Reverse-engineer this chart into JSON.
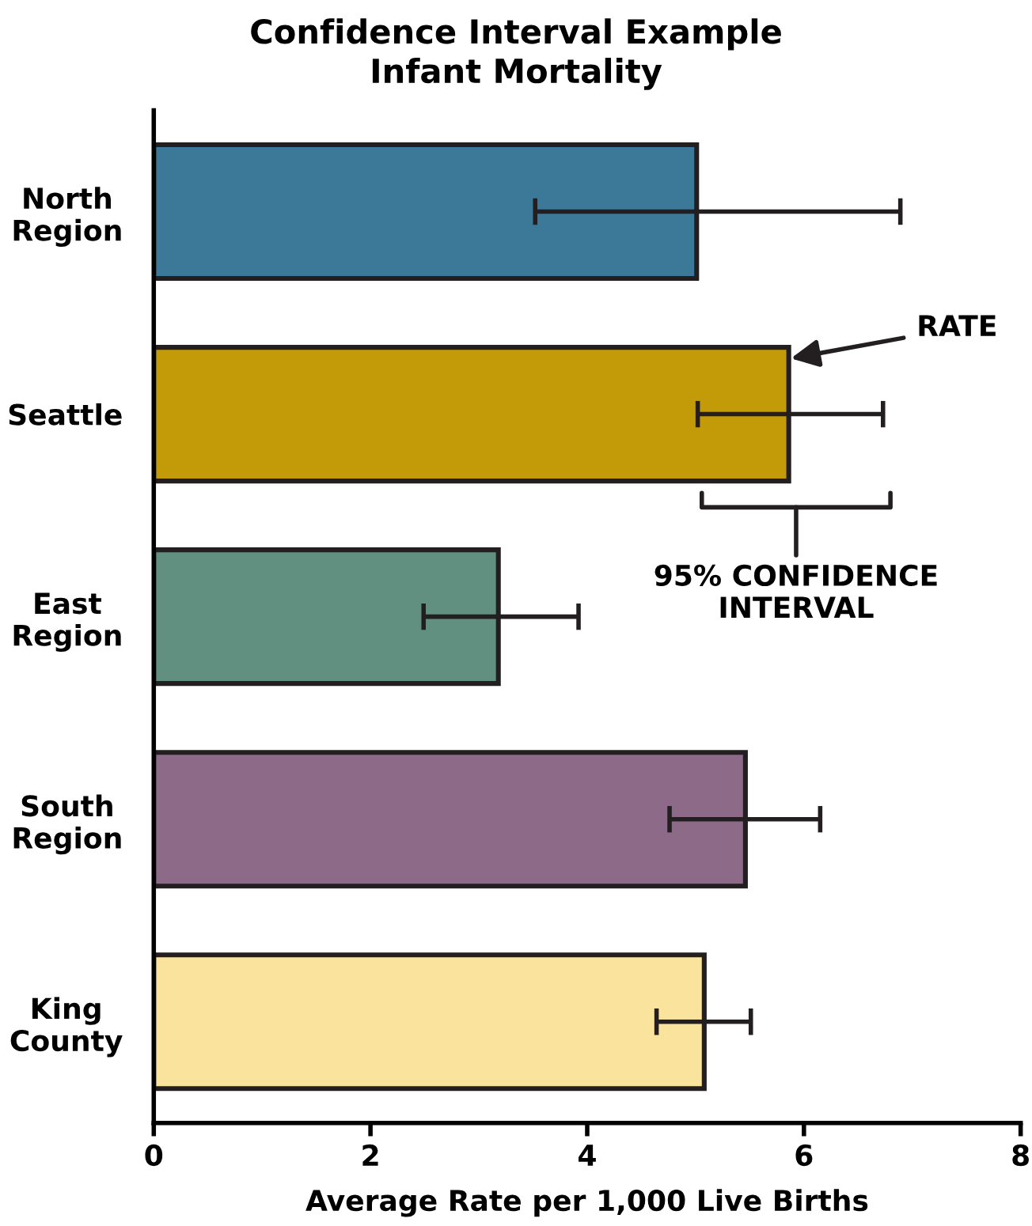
{
  "chart_data": {
    "type": "bar",
    "orientation": "horizontal",
    "title": "Confidence Interval Example\nInfant Mortality",
    "xlabel": "Average Rate per 1,000 Live Births",
    "categories": [
      "North\nRegion",
      "Seattle",
      "East\nRegion",
      "South\nRegion",
      "King\nCounty"
    ],
    "values": [
      5.01,
      5.86,
      3.18,
      5.46,
      5.08
    ],
    "colors": [
      "#3c7898",
      "#c39a08",
      "#629080",
      "#8c6a88",
      "#fae39c"
    ],
    "errors": [
      [
        3.52,
        6.89
      ],
      [
        5.02,
        6.73
      ],
      [
        2.49,
        3.92
      ],
      [
        4.76,
        6.15
      ],
      [
        4.64,
        5.51
      ]
    ],
    "xlim": [
      0,
      8
    ],
    "xticks": [
      0,
      2,
      4,
      6,
      8
    ],
    "grid": false,
    "annotations": [
      "RATE",
      "95% CONFIDENCE\nINTERVAL"
    ]
  }
}
